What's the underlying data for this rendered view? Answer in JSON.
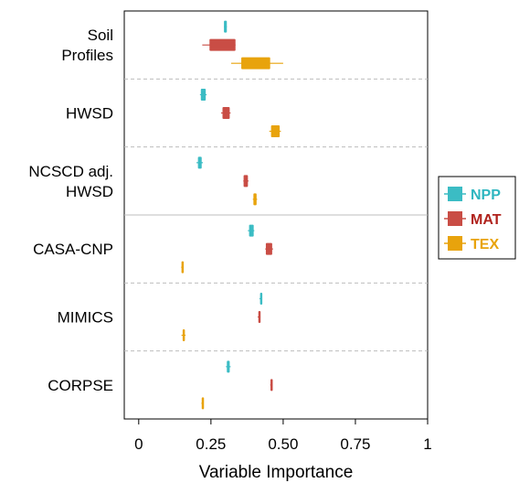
{
  "chart_data": {
    "type": "boxplot",
    "xlabel": "Variable Importance",
    "ylabel": "",
    "xlim": [
      -0.05,
      1.0
    ],
    "xticks": [
      0,
      0.25,
      0.5,
      0.75,
      1
    ],
    "xtick_labels": [
      "0",
      "0.25",
      "0.50",
      "0.75",
      "1"
    ],
    "grid": false,
    "legend_position": "right",
    "categories": [
      {
        "name": "Soil Profiles",
        "lines": [
          "Soil",
          "Profiles"
        ]
      },
      {
        "name": "HWSD",
        "lines": [
          "HWSD"
        ]
      },
      {
        "name": "NCSCD adj. HWSD",
        "lines": [
          "NCSCD adj.",
          "HWSD"
        ]
      },
      {
        "name": "CASA-CNP",
        "lines": [
          "CASA-CNP"
        ]
      },
      {
        "name": "MIMICS",
        "lines": [
          "MIMICS"
        ]
      },
      {
        "name": "CORPSE",
        "lines": [
          "CORPSE"
        ]
      }
    ],
    "separators": [
      {
        "after": 0,
        "style": "dashed"
      },
      {
        "after": 1,
        "style": "dashed"
      },
      {
        "after": 2,
        "style": "solid"
      },
      {
        "after": 3,
        "style": "dashed"
      },
      {
        "after": 4,
        "style": "dashed"
      }
    ],
    "series": [
      {
        "name": "NPP",
        "color": "#3bbcc4",
        "label_color": "#2eb6c0",
        "boxes": [
          {
            "min": 0.295,
            "q1": 0.295,
            "median": 0.3,
            "q3": 0.305,
            "max": 0.305
          },
          {
            "min": 0.212,
            "q1": 0.215,
            "median": 0.22,
            "q3": 0.232,
            "max": 0.235
          },
          {
            "min": 0.2,
            "q1": 0.205,
            "median": 0.21,
            "q3": 0.218,
            "max": 0.222
          },
          {
            "min": 0.378,
            "q1": 0.382,
            "median": 0.39,
            "q3": 0.398,
            "max": 0.4
          },
          {
            "min": 0.418,
            "q1": 0.42,
            "median": 0.422,
            "q3": 0.424,
            "max": 0.426
          },
          {
            "min": 0.302,
            "q1": 0.305,
            "median": 0.31,
            "q3": 0.315,
            "max": 0.318
          }
        ]
      },
      {
        "name": "MAT",
        "color": "#c94d45",
        "label_color": "#b0221c",
        "boxes": [
          {
            "min": 0.22,
            "q1": 0.245,
            "median": 0.27,
            "q3": 0.335,
            "max": 0.335
          },
          {
            "min": 0.285,
            "q1": 0.29,
            "median": 0.3,
            "q3": 0.315,
            "max": 0.318
          },
          {
            "min": 0.362,
            "q1": 0.363,
            "median": 0.37,
            "q3": 0.378,
            "max": 0.38
          },
          {
            "min": 0.438,
            "q1": 0.44,
            "median": 0.45,
            "q3": 0.462,
            "max": 0.465
          },
          {
            "min": 0.412,
            "q1": 0.414,
            "median": 0.415,
            "q3": 0.416,
            "max": 0.418
          },
          {
            "min": 0.455,
            "q1": 0.456,
            "median": 0.458,
            "q3": 0.46,
            "max": 0.462
          }
        ]
      },
      {
        "name": "TEX",
        "color": "#e8a30c",
        "label_color": "#e8a30c",
        "boxes": [
          {
            "min": 0.32,
            "q1": 0.355,
            "median": 0.4,
            "q3": 0.455,
            "max": 0.5
          },
          {
            "min": 0.452,
            "q1": 0.458,
            "median": 0.47,
            "q3": 0.488,
            "max": 0.492
          },
          {
            "min": 0.395,
            "q1": 0.397,
            "median": 0.4,
            "q3": 0.408,
            "max": 0.41
          },
          {
            "min": 0.147,
            "q1": 0.148,
            "median": 0.149,
            "q3": 0.151,
            "max": 0.152
          },
          {
            "min": 0.148,
            "q1": 0.152,
            "median": 0.155,
            "q3": 0.158,
            "max": 0.162
          },
          {
            "min": 0.217,
            "q1": 0.218,
            "median": 0.22,
            "q3": 0.222,
            "max": 0.224
          }
        ]
      }
    ]
  }
}
